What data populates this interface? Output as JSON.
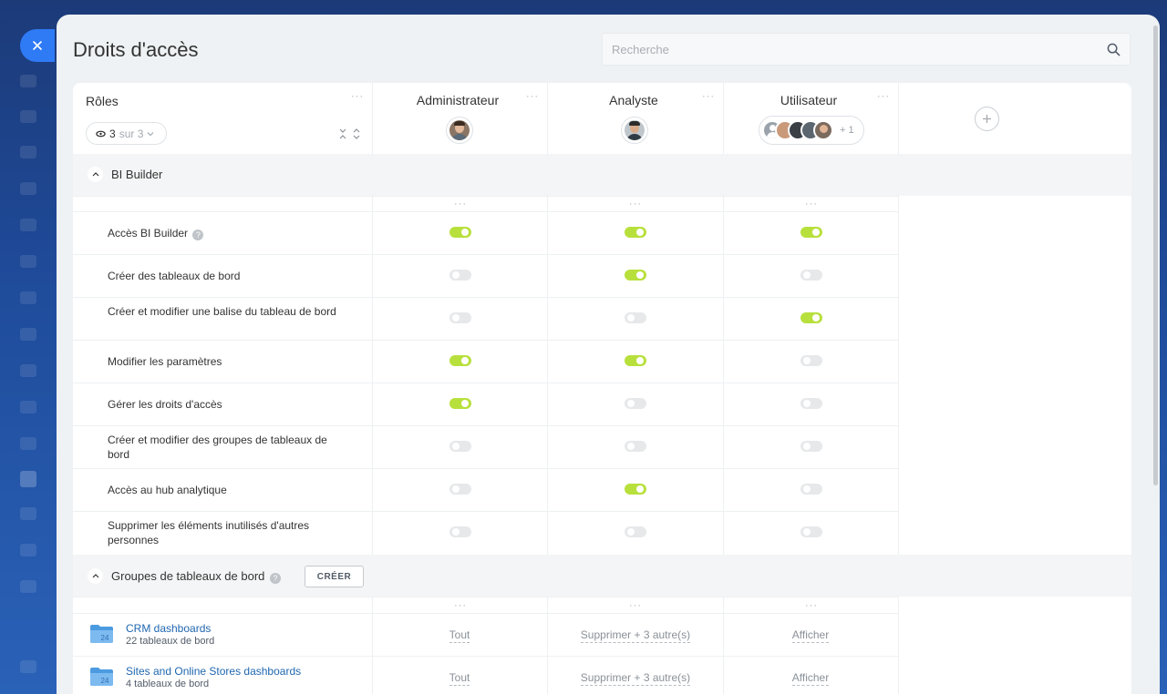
{
  "page": {
    "title": "Droits d'accès"
  },
  "search": {
    "placeholder": "Recherche"
  },
  "roles_header": {
    "title": "Rôles",
    "filter_count": "3",
    "filter_suffix": "sur 3"
  },
  "roles": [
    {
      "name": "Administrateur"
    },
    {
      "name": "Analyste"
    },
    {
      "name": "Utilisateur",
      "extra_count": "+ 1"
    }
  ],
  "sections": {
    "bi_builder": {
      "title": "BI Builder",
      "permissions": [
        {
          "label": "Accès BI Builder",
          "help": true,
          "values": [
            true,
            true,
            true
          ]
        },
        {
          "label": "Créer des tableaux de bord",
          "values": [
            false,
            true,
            false
          ]
        },
        {
          "label": "Créer et modifier une balise du tableau de bord",
          "values": [
            false,
            false,
            true
          ]
        },
        {
          "label": "Modifier les paramètres",
          "values": [
            true,
            true,
            false
          ]
        },
        {
          "label": "Gérer les droits d'accès",
          "values": [
            true,
            false,
            false
          ]
        },
        {
          "label": "Créer et modifier des groupes de tableaux de bord",
          "values": [
            false,
            false,
            false
          ]
        },
        {
          "label": "Accès au hub analytique",
          "values": [
            false,
            true,
            false
          ]
        },
        {
          "label": "Supprimer les éléments inutilisés d'autres personnes",
          "values": [
            false,
            false,
            false
          ]
        }
      ]
    },
    "dashboard_groups": {
      "title": "Groupes de tableaux de bord",
      "create_label": "CRÉER",
      "groups": [
        {
          "name": "CRM dashboards",
          "count": "22 tableaux de bord",
          "values": [
            "Tout",
            "Supprimer + 3 autre(s)",
            "Afficher"
          ]
        },
        {
          "name": "Sites and Online Stores dashboards",
          "count": "4 tableaux de bord",
          "values": [
            "Tout",
            "Supprimer + 3 autre(s)",
            "Afficher"
          ]
        }
      ]
    }
  },
  "icons": {
    "close": "close-icon",
    "search": "search-icon",
    "menu": "more-dots-icon",
    "collapse": "chevron-up-icon",
    "help": "help-icon",
    "folder": "folder-icon",
    "add": "plus-icon",
    "eye": "eye-icon"
  },
  "colors": {
    "toggle_on": "#b8e03d",
    "toggle_off": "#e6e8ea",
    "accent": "#2f7af5",
    "link": "#2067b0"
  }
}
